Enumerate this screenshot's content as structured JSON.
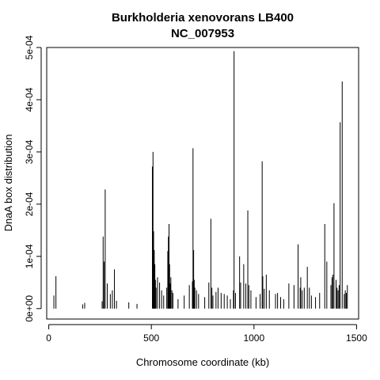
{
  "chart_data": {
    "type": "bar",
    "style": "vertical-spikes",
    "title": "Burkholderia xenovorans LB400",
    "subtitle": "NC_007953",
    "xlabel": "Chromosome coordinate (kb)",
    "ylabel": "DnaA box distribution",
    "xlim": [
      -10,
      1510
    ],
    "ylim": [
      -2e-05,
      0.0005
    ],
    "xticks": [
      0,
      500,
      1000,
      1500
    ],
    "xtick_labels": [
      "0",
      "500",
      "1000",
      "1500"
    ],
    "yticks": [
      0,
      0.0001,
      0.0002,
      0.0003,
      0.0004,
      0.0005
    ],
    "ytick_labels": [
      "0e+00",
      "1e-04",
      "2e-04",
      "3e-04",
      "4e-04",
      "5e-04"
    ],
    "grid": false,
    "legend": "none",
    "color": "#000000",
    "x": [
      25,
      35,
      165,
      175,
      260,
      265,
      270,
      275,
      285,
      300,
      310,
      320,
      330,
      390,
      430,
      505,
      508,
      511,
      514,
      517,
      520,
      523,
      530,
      540,
      550,
      560,
      575,
      580,
      583,
      586,
      589,
      592,
      595,
      600,
      605,
      630,
      660,
      685,
      700,
      703,
      706,
      709,
      712,
      720,
      730,
      760,
      780,
      790,
      795,
      800,
      815,
      825,
      840,
      855,
      870,
      885,
      900,
      903,
      910,
      930,
      935,
      950,
      960,
      970,
      975,
      985,
      1010,
      1030,
      1040,
      1043,
      1050,
      1060,
      1075,
      1105,
      1115,
      1130,
      1145,
      1170,
      1195,
      1215,
      1225,
      1228,
      1235,
      1245,
      1260,
      1270,
      1280,
      1300,
      1320,
      1345,
      1355,
      1375,
      1380,
      1385,
      1390,
      1400,
      1405,
      1410,
      1415,
      1420,
      1430,
      1440,
      1445,
      1450,
      1455
    ],
    "values": [
      2.5e-05,
      6.2e-05,
      8e-06,
      1.1e-05,
      1.4e-05,
      0.000138,
      9e-05,
      0.000228,
      4.8e-05,
      2.8e-05,
      3.5e-05,
      7.5e-05,
      1.5e-05,
      1.2e-05,
      9e-06,
      0.000272,
      0.0003,
      0.000148,
      0.000112,
      8.5e-05,
      5.5e-05,
      4e-05,
      6e-05,
      5e-05,
      3.5e-05,
      2.5e-05,
      4e-05,
      0.00011,
      0.000138,
      0.000162,
      8.5e-05,
      4.8e-05,
      6e-05,
      3.5e-05,
      3e-05,
      1.8e-05,
      2.5e-05,
      4.5e-05,
      5.2e-05,
      0.000307,
      0.000112,
      5.5e-05,
      4e-05,
      3.5e-05,
      2.8e-05,
      2.2e-05,
      5e-05,
      0.000172,
      4e-05,
      2.5e-05,
      3.2e-05,
      4e-05,
      3e-05,
      2.8e-05,
      2.5e-05,
      1.8e-05,
      3.5e-05,
      0.000493,
      3e-05,
      0.0001,
      5e-05,
      8.5e-05,
      4.8e-05,
      0.000188,
      4.5e-05,
      3.5e-05,
      2.2e-05,
      2.8e-05,
      0.000282,
      6.2e-05,
      3.8e-05,
      6.5e-05,
      3.5e-05,
      2.8e-05,
      3e-05,
      2.2e-05,
      1.8e-05,
      4.8e-05,
      4.5e-05,
      0.000123,
      4e-05,
      6e-05,
      3.5e-05,
      4e-05,
      8e-05,
      4e-05,
      2.5e-05,
      2.2e-05,
      3e-05,
      0.000162,
      9e-05,
      4.5e-05,
      6e-05,
      6.5e-05,
      0.000202,
      5.5e-05,
      4e-05,
      3.5e-05,
      4.5e-05,
      0.000357,
      0.000435,
      2.8e-05,
      3.5e-05,
      3e-05,
      4.5e-05
    ]
  }
}
